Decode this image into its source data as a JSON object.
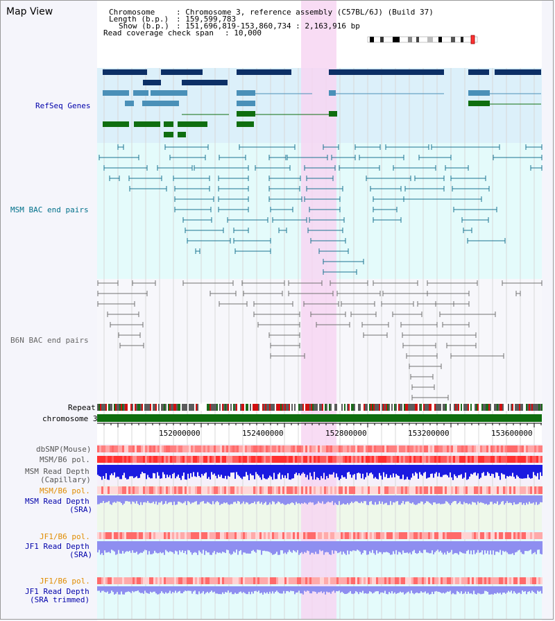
{
  "window_title": "Map View",
  "header": {
    "chromosome_label": "Chromosome",
    "chromosome_value": ": Chromosome 3, reference assembly (C57BL/6J) (Build 37)",
    "length_label": "Length (b.p.)",
    "length_value": ": 159,599,783",
    "show_label": "Show (b.p.)",
    "show_value": ": 151,696,819-153,860,734 : 2,163,916 bp",
    "coverage_label": "Read coverage check span",
    "coverage_value": ": 10,000"
  },
  "tracks": {
    "refseq": "RefSeq Genes",
    "msm_bac": "MSM BAC end pairs",
    "b6n_bac": "B6N BAC end pairs",
    "repeat": "Repeat",
    "chromosome": "chromosome 3",
    "dbsnp": "dbSNP(Mouse)",
    "msm_b6_pol": "MSM/B6 pol.",
    "msm_depth_cap_1": "MSM Read Depth",
    "msm_depth_cap_2": "(Capillary)",
    "msm_b6_pol_2": "MSM/B6 pol.",
    "msm_depth_sra_1": "MSM Read Depth",
    "msm_depth_sra_2": "(SRA)",
    "jf1_b6_pol": "JF1/B6 pol.",
    "jf1_depth_sra_1": "JF1 Read Depth",
    "jf1_depth_sra_2": "(SRA)",
    "jf1_b6_pol_2": "JF1/B6 pol.",
    "jf1_depth_trim_1": "JF1 Read Depth",
    "jf1_depth_trim_2": "(SRA trimmed)"
  },
  "axis_ticks": [
    "152000000",
    "152400000",
    "152800000",
    "153200000",
    "153600000"
  ],
  "colors": {
    "refseq_dark": "#0c2f66",
    "refseq_light": "#4a90b8",
    "refseq_green": "#0f6e0f",
    "msm_teal": "#1a7390",
    "b6n_gray": "#707070",
    "highlight_pink": "#f7d6f2",
    "chromosome_green": "#0f6e0f",
    "depth_blue": "#1a1ae0",
    "depth_lavender": "#8e8ef0",
    "label_navy": "#0000aa",
    "label_orange": "#e08c00",
    "label_teal": "#00708a",
    "label_gray": "#666666"
  }
}
